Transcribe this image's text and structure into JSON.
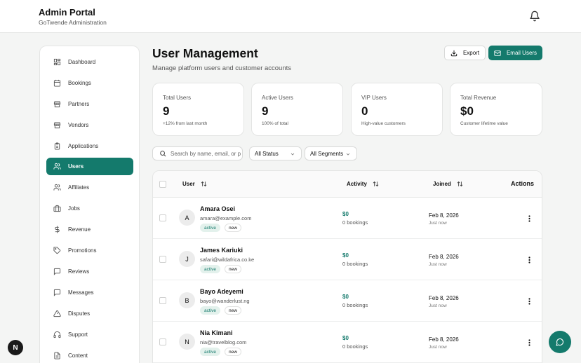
{
  "header": {
    "title": "Admin Portal",
    "subtitle": "GoTwende Administration",
    "bell_icon": "bell-icon"
  },
  "sidebar": {
    "items": [
      {
        "label": "Dashboard",
        "icon": "dashboard-icon",
        "active": false
      },
      {
        "label": "Bookings",
        "icon": "calendar-icon",
        "active": false
      },
      {
        "label": "Partners",
        "icon": "store-icon",
        "active": false
      },
      {
        "label": "Vendors",
        "icon": "store-icon",
        "active": false
      },
      {
        "label": "Applications",
        "icon": "clipboard-icon",
        "active": false
      },
      {
        "label": "Users",
        "icon": "users-icon",
        "active": true
      },
      {
        "label": "Affiliates",
        "icon": "users-icon",
        "active": false
      },
      {
        "label": "Jobs",
        "icon": "briefcase-icon",
        "active": false
      },
      {
        "label": "Revenue",
        "icon": "dollar-icon",
        "active": false
      },
      {
        "label": "Promotions",
        "icon": "tag-icon",
        "active": false
      },
      {
        "label": "Reviews",
        "icon": "message-icon",
        "active": false
      },
      {
        "label": "Messages",
        "icon": "message-icon",
        "active": false
      },
      {
        "label": "Disputes",
        "icon": "alert-triangle-icon",
        "active": false
      },
      {
        "label": "Support",
        "icon": "headset-icon",
        "active": false
      },
      {
        "label": "Content",
        "icon": "file-icon",
        "active": false
      }
    ]
  },
  "main": {
    "title": "User Management",
    "subtitle": "Manage platform users and customer accounts",
    "export_label": "Export",
    "email_label": "Email Users"
  },
  "stats": [
    {
      "label": "Total Users",
      "value": "9",
      "note": "+12% from last month"
    },
    {
      "label": "Active Users",
      "value": "9",
      "note": "100% of total"
    },
    {
      "label": "VIP Users",
      "value": "0",
      "note": "High-value customers"
    },
    {
      "label": "Total Revenue",
      "value": "$0",
      "note": "Customer lifetime value"
    }
  ],
  "filters": {
    "search_placeholder": "Search by name, email, or phone...",
    "status_value": "All Status",
    "segment_value": "All Segments"
  },
  "table": {
    "headers": {
      "user": "User",
      "activity": "Activity",
      "joined": "Joined",
      "actions": "Actions"
    },
    "rows": [
      {
        "initial": "A",
        "name": "Amara Osei",
        "email": "amara@example.com",
        "status": "active",
        "tag": "new",
        "amount": "$0",
        "bookings": "0 bookings",
        "joined": "Feb 8, 2026",
        "joined_rel": "Just now"
      },
      {
        "initial": "J",
        "name": "James Kariuki",
        "email": "safari@wildafrica.co.ke",
        "status": "active",
        "tag": "new",
        "amount": "$0",
        "bookings": "0 bookings",
        "joined": "Feb 8, 2026",
        "joined_rel": "Just now"
      },
      {
        "initial": "B",
        "name": "Bayo Adeyemi",
        "email": "bayo@wanderlust.ng",
        "status": "active",
        "tag": "new",
        "amount": "$0",
        "bookings": "0 bookings",
        "joined": "Feb 8, 2026",
        "joined_rel": "Just now"
      },
      {
        "initial": "N",
        "name": "Nia Kimani",
        "email": "nia@travelblog.com",
        "status": "active",
        "tag": "new",
        "amount": "$0",
        "bookings": "0 bookings",
        "joined": "Feb 8, 2026",
        "joined_rel": "Just now"
      }
    ]
  },
  "floating": {
    "n_label": "N",
    "chat_icon": "chat-icon"
  },
  "colors": {
    "accent": "#147a6c",
    "accent_soft": "#e3f1ec",
    "background": "#f4f5f4"
  }
}
